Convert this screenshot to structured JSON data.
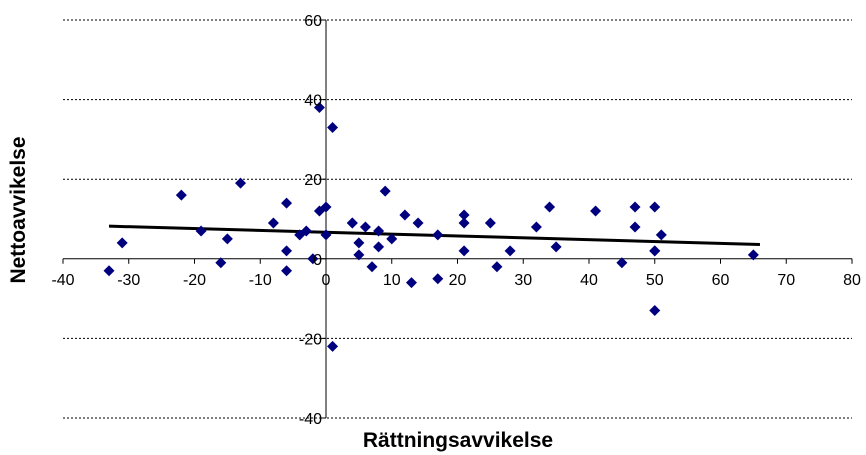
{
  "chart_data": {
    "type": "scatter",
    "title": "",
    "xlabel": "Rättningsavvikelse",
    "ylabel": "Nettoavvikelse",
    "xlim": [
      -40,
      80
    ],
    "ylim": [
      -40,
      60
    ],
    "x_ticks": [
      -40,
      -30,
      -20,
      -10,
      0,
      10,
      20,
      30,
      40,
      50,
      60,
      70,
      80
    ],
    "y_ticks": [
      -40,
      -20,
      0,
      20,
      40,
      60
    ],
    "x_tick_labels": [
      "-40",
      "-30",
      "-20",
      "-10",
      "0",
      "10",
      "20",
      "30",
      "40",
      "50",
      "60",
      "70",
      "80"
    ],
    "y_tick_labels": [
      "-40",
      "-20",
      "0",
      "20",
      "40",
      "60"
    ],
    "grid": "horizontal dashed",
    "legend": "none",
    "marker": "diamond",
    "marker_color": "#00007f",
    "trendline_color": "#000000",
    "series": [
      {
        "points": [
          [
            -33,
            -3
          ],
          [
            -31,
            4
          ],
          [
            -22,
            16
          ],
          [
            -19,
            7
          ],
          [
            -16,
            -1
          ],
          [
            -15,
            5
          ],
          [
            -13,
            19
          ],
          [
            -8,
            9
          ],
          [
            -6,
            14
          ],
          [
            -6,
            2
          ],
          [
            -6,
            -3
          ],
          [
            -4,
            6
          ],
          [
            -3,
            7
          ],
          [
            -2,
            0
          ],
          [
            -1,
            38
          ],
          [
            -1,
            12
          ],
          [
            0,
            13
          ],
          [
            0,
            6
          ],
          [
            1,
            33
          ],
          [
            1,
            -22
          ],
          [
            4,
            9
          ],
          [
            4,
            9
          ],
          [
            5,
            1
          ],
          [
            5,
            4
          ],
          [
            6,
            8
          ],
          [
            7,
            -2
          ],
          [
            8,
            3
          ],
          [
            8,
            7
          ],
          [
            9,
            17
          ],
          [
            10,
            5
          ],
          [
            12,
            11
          ],
          [
            13,
            -6
          ],
          [
            14,
            9
          ],
          [
            17,
            6
          ],
          [
            17,
            -5
          ],
          [
            21,
            11
          ],
          [
            21,
            9
          ],
          [
            21,
            2
          ],
          [
            25,
            9
          ],
          [
            26,
            -2
          ],
          [
            28,
            2
          ],
          [
            32,
            8
          ],
          [
            34,
            13
          ],
          [
            35,
            3
          ],
          [
            41,
            12
          ],
          [
            45,
            -1
          ],
          [
            47,
            13
          ],
          [
            47,
            8
          ],
          [
            50,
            13
          ],
          [
            50,
            2
          ],
          [
            50,
            -13
          ],
          [
            50,
            2
          ],
          [
            51,
            6
          ],
          [
            65,
            1
          ]
        ]
      }
    ],
    "trendline": {
      "x": [
        -33,
        66
      ],
      "y": [
        8.2,
        3.6
      ]
    }
  }
}
